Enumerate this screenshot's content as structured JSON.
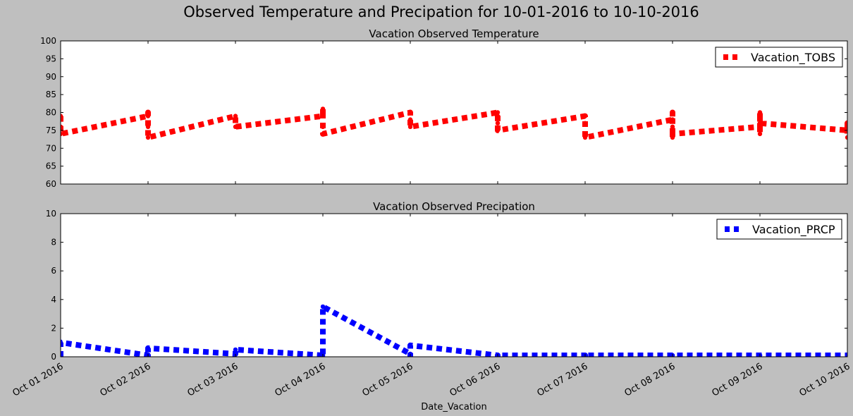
{
  "figure": {
    "suptitle": "Observed Temperature and Precipation for 10-01-2016 to 10-10-2016",
    "xlabel": "Date_Vacation"
  },
  "colors": {
    "background": "#bfbfbf",
    "axes_bg": "#ffffff",
    "tobs": "#ff0000",
    "prcp": "#0000ff"
  },
  "chart_data": [
    {
      "type": "line",
      "title": "Vacation Observed Temperature",
      "ylabel": "",
      "ylim": [
        60,
        100
      ],
      "yticks": [
        60,
        65,
        70,
        75,
        80,
        85,
        90,
        95,
        100
      ],
      "xlim": [
        "2016-10-01",
        "2016-10-10"
      ],
      "xticks": [
        "Oct 01 2016",
        "Oct 02 2016",
        "Oct 03 2016",
        "Oct 04 2016",
        "Oct 05 2016",
        "Oct 06 2016",
        "Oct 07 2016",
        "Oct 08 2016",
        "Oct 09 2016",
        "Oct 10 2016"
      ],
      "show_xticklabels": false,
      "legend": "top-right",
      "grid": false,
      "series": [
        {
          "name": "Vacation_TOBS",
          "color": "#ff0000",
          "linestyle": "dashed",
          "points": [
            [
              "2016-10-01",
              79
            ],
            [
              "2016-10-01",
              76
            ],
            [
              "2016-10-01",
              74
            ],
            [
              "2016-10-02",
              79
            ],
            [
              "2016-10-02",
              80
            ],
            [
              "2016-10-02",
              77
            ],
            [
              "2016-10-02",
              76
            ],
            [
              "2016-10-02",
              73
            ],
            [
              "2016-10-03",
              79
            ],
            [
              "2016-10-03",
              78
            ],
            [
              "2016-10-03",
              76
            ],
            [
              "2016-10-04",
              79
            ],
            [
              "2016-10-04",
              81
            ],
            [
              "2016-10-04",
              80
            ],
            [
              "2016-10-04",
              76
            ],
            [
              "2016-10-04",
              74
            ],
            [
              "2016-10-05",
              80
            ],
            [
              "2016-10-05",
              78
            ],
            [
              "2016-10-05",
              77
            ],
            [
              "2016-10-05",
              76
            ],
            [
              "2016-10-06",
              80
            ],
            [
              "2016-10-06",
              79
            ],
            [
              "2016-10-06",
              77
            ],
            [
              "2016-10-06",
              75
            ],
            [
              "2016-10-07",
              79
            ],
            [
              "2016-10-07",
              77
            ],
            [
              "2016-10-07",
              73
            ],
            [
              "2016-10-08",
              78
            ],
            [
              "2016-10-08",
              80
            ],
            [
              "2016-10-08",
              76
            ],
            [
              "2016-10-08",
              73
            ],
            [
              "2016-10-08",
              74
            ],
            [
              "2016-10-09",
              76
            ],
            [
              "2016-10-09",
              80
            ],
            [
              "2016-10-09",
              78
            ],
            [
              "2016-10-09",
              74
            ],
            [
              "2016-10-09",
              77
            ],
            [
              "2016-10-10",
              75
            ],
            [
              "2016-10-10",
              77
            ],
            [
              "2016-10-10",
              73
            ]
          ]
        }
      ]
    },
    {
      "type": "line",
      "title": "Vacation Observed Precipation",
      "ylabel": "",
      "ylim": [
        0,
        10
      ],
      "yticks": [
        0,
        2,
        4,
        6,
        8,
        10
      ],
      "xlim": [
        "2016-10-01",
        "2016-10-10"
      ],
      "xticks": [
        "Oct 01 2016",
        "Oct 02 2016",
        "Oct 03 2016",
        "Oct 04 2016",
        "Oct 05 2016",
        "Oct 06 2016",
        "Oct 07 2016",
        "Oct 08 2016",
        "Oct 09 2016",
        "Oct 10 2016"
      ],
      "show_xticklabels": true,
      "legend": "top-right",
      "grid": false,
      "series": [
        {
          "name": "Vacation_PRCP",
          "color": "#0000ff",
          "linestyle": "dashed",
          "points": [
            [
              "2016-10-01",
              0.0
            ],
            [
              "2016-10-01",
              1.0
            ],
            [
              "2016-10-02",
              0.1
            ],
            [
              "2016-10-02",
              0.0
            ],
            [
              "2016-10-02",
              0.6
            ],
            [
              "2016-10-03",
              0.2
            ],
            [
              "2016-10-03",
              0.5
            ],
            [
              "2016-10-04",
              0.1
            ],
            [
              "2016-10-04",
              0.0
            ],
            [
              "2016-10-04",
              3.5
            ],
            [
              "2016-10-05",
              0.2
            ],
            [
              "2016-10-05",
              0.0
            ],
            [
              "2016-10-05",
              0.8
            ],
            [
              "2016-10-06",
              0.1
            ],
            [
              "2016-10-06",
              0.0
            ],
            [
              "2016-10-06",
              0.1
            ],
            [
              "2016-10-07",
              0.1
            ],
            [
              "2016-10-07",
              0.0
            ],
            [
              "2016-10-07",
              0.1
            ],
            [
              "2016-10-08",
              0.1
            ],
            [
              "2016-10-08",
              0.1
            ],
            [
              "2016-10-09",
              0.1
            ],
            [
              "2016-10-09",
              0.1
            ],
            [
              "2016-10-10",
              0.1
            ]
          ]
        }
      ]
    }
  ]
}
